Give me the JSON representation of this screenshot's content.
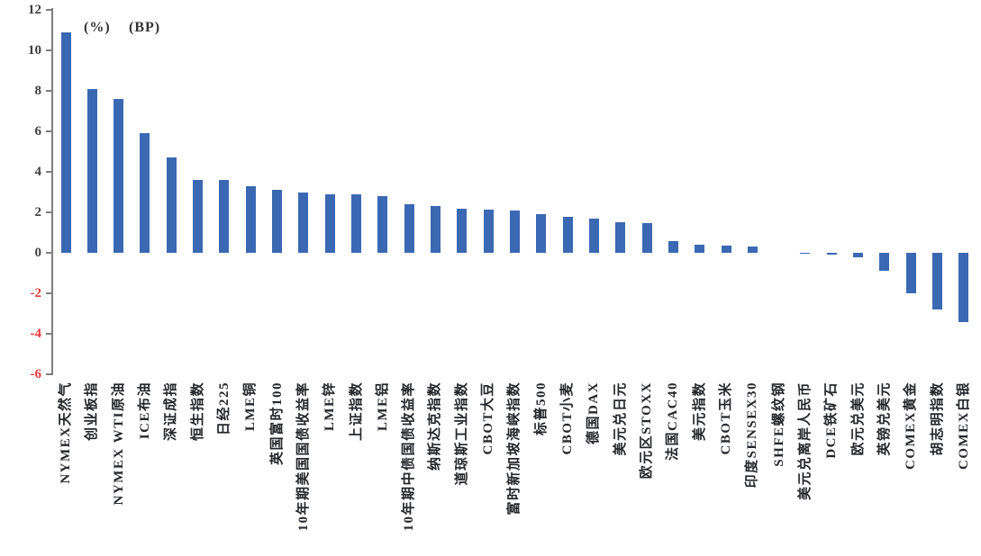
{
  "annotations": {
    "percent_label": "(%)",
    "bp_label": "(BP)"
  },
  "chart_data": {
    "type": "bar",
    "title": "",
    "xlabel": "",
    "ylabel": "",
    "categories": [
      "NYMEX天然气",
      "创业板指",
      "NYMEX WTI原油",
      "ICE布油",
      "深证成指",
      "恒生指数",
      "日经225",
      "LME铜",
      "英国富时100",
      "10年期美国国债收益率",
      "LME锌",
      "上证指数",
      "LME铝",
      "10年期中债国债收益率",
      "纳斯达克指数",
      "道琼斯工业指数",
      "CBOT大豆",
      "富时新加坡海峡指数",
      "标普500",
      "CBOT小麦",
      "德国DAX",
      "美元兑日元",
      "欧元区STOXX",
      "法国CAC40",
      "美元指数",
      "CBOT玉米",
      "印度SENSEX30",
      "SHFE螺纹钢",
      "美元兑离岸人民币",
      "DCE铁矿石",
      "欧元兑美元",
      "英镑兑美元",
      "COMEX黄金",
      "胡志明指数",
      "COMEX白银"
    ],
    "values": [
      10.9,
      8.1,
      7.6,
      5.9,
      4.7,
      3.6,
      3.6,
      3.3,
      3.1,
      3.0,
      2.9,
      2.9,
      2.8,
      2.4,
      2.3,
      2.2,
      2.15,
      2.1,
      1.9,
      1.8,
      1.7,
      1.5,
      1.45,
      0.6,
      0.4,
      0.35,
      0.3,
      0.0,
      -0.05,
      -0.1,
      -0.2,
      -0.9,
      -2.0,
      -2.8,
      -3.4
    ],
    "unit_annotations": [
      "(%)",
      "(BP)"
    ],
    "ylim": [
      -6,
      12
    ],
    "yticks": [
      12,
      10,
      8,
      6,
      4,
      2,
      0,
      -2,
      -4,
      -6
    ],
    "grid": false,
    "legend_position": "none",
    "bar_color": "#3b68b2",
    "axis_color": "#7f7f7f",
    "tick_label_color": "#3f3f3f",
    "negative_tick_label_color": "#e8393b",
    "category_label_color": "#26272b"
  }
}
